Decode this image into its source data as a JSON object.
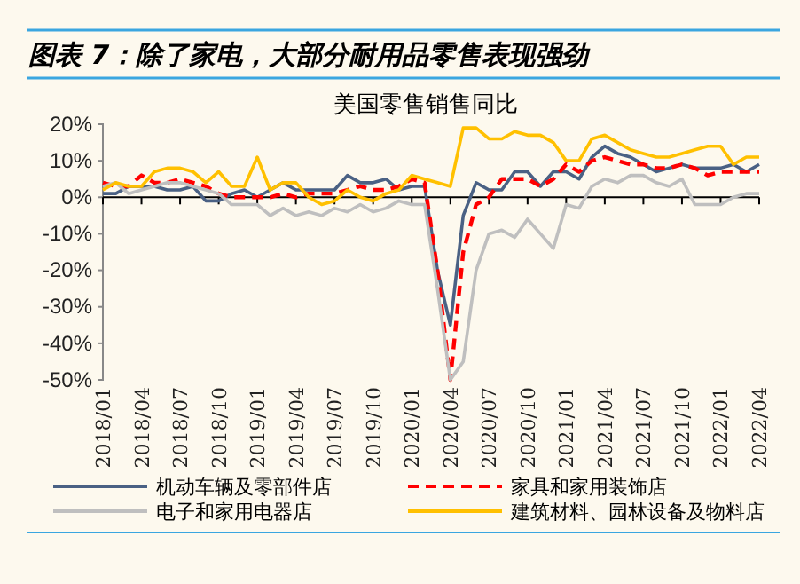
{
  "chart_data": {
    "type": "line",
    "title": "图表 7：除了家电，大部分耐用品零售表现强劲",
    "subtitle": "美国零售销售同比",
    "categories": [
      "2018/01",
      null,
      null,
      "2018/04",
      null,
      null,
      "2018/07",
      null,
      null,
      "2018/10",
      null,
      null,
      "2019/01",
      null,
      null,
      "2019/04",
      null,
      null,
      "2019/07",
      null,
      null,
      "2019/10",
      null,
      null,
      "2020/01",
      null,
      null,
      "2020/04",
      null,
      null,
      "2020/07",
      null,
      null,
      "2020/10",
      null,
      null,
      "2021/01",
      null,
      null,
      "2021/04",
      null,
      null,
      "2021/07",
      null,
      null,
      "2021/10",
      null,
      null,
      "2022/01",
      null,
      null,
      "2022/04"
    ],
    "series": [
      {
        "name": "机动车辆及零部件店",
        "color": "#4a6184",
        "line_style": "solid",
        "values": [
          1,
          1,
          3,
          3,
          3,
          2,
          2,
          3,
          -1,
          -1,
          1,
          2,
          0,
          2,
          4,
          2,
          2,
          2,
          2,
          6,
          4,
          4,
          5,
          2,
          3,
          3,
          -20,
          -35,
          -5,
          4,
          2,
          2,
          7,
          7,
          3,
          7,
          7,
          5,
          11,
          14,
          12,
          11,
          9,
          7,
          8,
          9,
          8,
          8,
          8,
          9,
          7,
          9
        ]
      },
      {
        "name": "家具和家用装饰店",
        "color": "#ff0000",
        "line_style": "dashed",
        "values": [
          4,
          3,
          3,
          6,
          4,
          4,
          5,
          4,
          3,
          1,
          0,
          0,
          0,
          0,
          1,
          0,
          1,
          1,
          1,
          2,
          3,
          2,
          2,
          3,
          5,
          4,
          -20,
          -50,
          -15,
          -2,
          0,
          5,
          5,
          5,
          3,
          5,
          9,
          7,
          10,
          11,
          10,
          9,
          9,
          8,
          8,
          9,
          8,
          6,
          7,
          7,
          7,
          7
        ]
      },
      {
        "name": "电子和家用电器店",
        "color": "#bfbfbf",
        "line_style": "solid",
        "values": [
          3,
          4,
          1,
          2,
          3,
          4,
          4,
          3,
          2,
          1,
          -2,
          -2,
          -2,
          -5,
          -3,
          -5,
          -4,
          -5,
          -3,
          -4,
          -2,
          -4,
          -3,
          -1,
          -2,
          -2,
          -25,
          -50,
          -45,
          -20,
          -10,
          -9,
          -11,
          -6,
          -10,
          -14,
          -2,
          -3,
          3,
          5,
          4,
          6,
          6,
          4,
          3,
          5,
          -2,
          -2,
          -2,
          0,
          1,
          1
        ]
      },
      {
        "name": "建筑材料、园林设备及物料店",
        "color": "#ffc000",
        "line_style": "solid",
        "values": [
          2,
          4,
          3,
          3,
          7,
          8,
          8,
          7,
          4,
          7,
          3,
          3,
          11,
          2,
          4,
          4,
          0,
          -2,
          -1,
          2,
          0,
          -1,
          1,
          2,
          6,
          5,
          4,
          3,
          19,
          19,
          16,
          16,
          18,
          17,
          17,
          15,
          10,
          10,
          16,
          17,
          15,
          13,
          12,
          11,
          11,
          12,
          13,
          14,
          14,
          9,
          11,
          11
        ]
      }
    ],
    "ylim": [
      -50,
      20
    ],
    "yticks": [
      {
        "value": -50,
        "label": "-50%"
      },
      {
        "value": -40,
        "label": "-40%"
      },
      {
        "value": -30,
        "label": "-30%"
      },
      {
        "value": -20,
        "label": "-20%"
      },
      {
        "value": -10,
        "label": "-10%"
      },
      {
        "value": 0,
        "label": "0%"
      },
      {
        "value": 10,
        "label": "10%"
      },
      {
        "value": 20,
        "label": "20%"
      }
    ],
    "legend": "bottom",
    "marker": "none"
  }
}
